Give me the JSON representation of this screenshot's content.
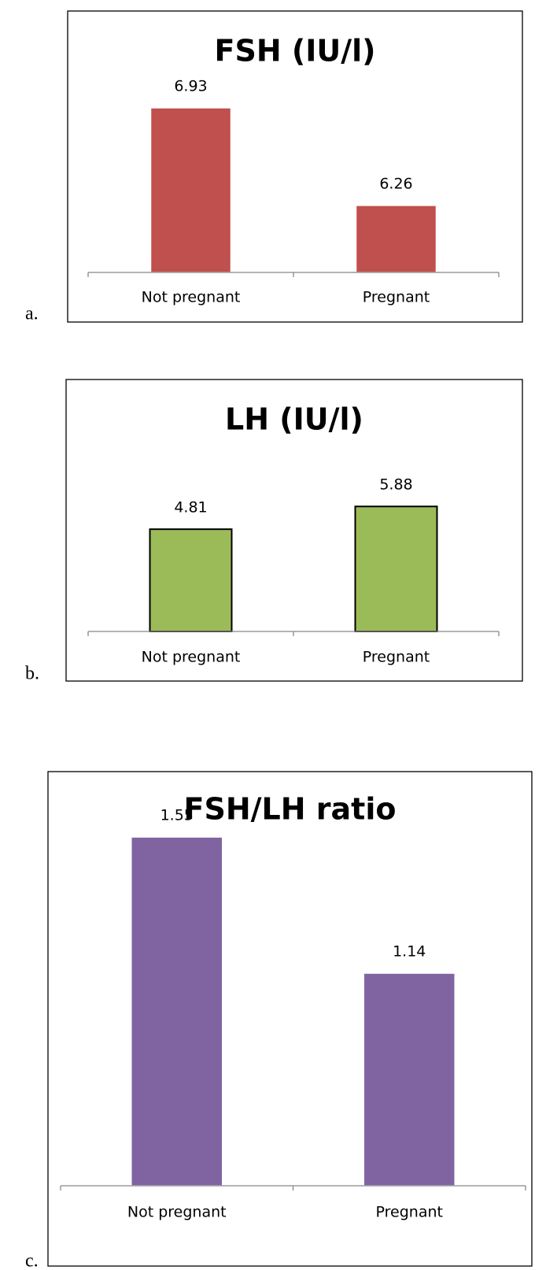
{
  "chart_data": [
    {
      "type": "bar",
      "label": "a.",
      "title": "FSH (IU/l)",
      "categories": [
        "Not pregnant",
        "Pregnant"
      ],
      "values": [
        6.93,
        6.26
      ],
      "color": "#c0504d",
      "outline": false,
      "ylim": [
        5.8,
        7.0
      ]
    },
    {
      "type": "bar",
      "label": "b.",
      "title": "LH (IU/l)",
      "categories": [
        "Not pregnant",
        "Pregnant"
      ],
      "values": [
        4.81,
        5.88
      ],
      "color": "#9bbb59",
      "outline": true,
      "ylim": [
        0,
        7
      ]
    },
    {
      "type": "bar",
      "label": "c.",
      "title": "FSH/LH ratio",
      "categories": [
        "Not pregnant",
        "Pregnant"
      ],
      "values": [
        1.55,
        1.14
      ],
      "color": "#8064a2",
      "outline": false,
      "ylim": [
        0.5,
        1.6
      ]
    }
  ]
}
